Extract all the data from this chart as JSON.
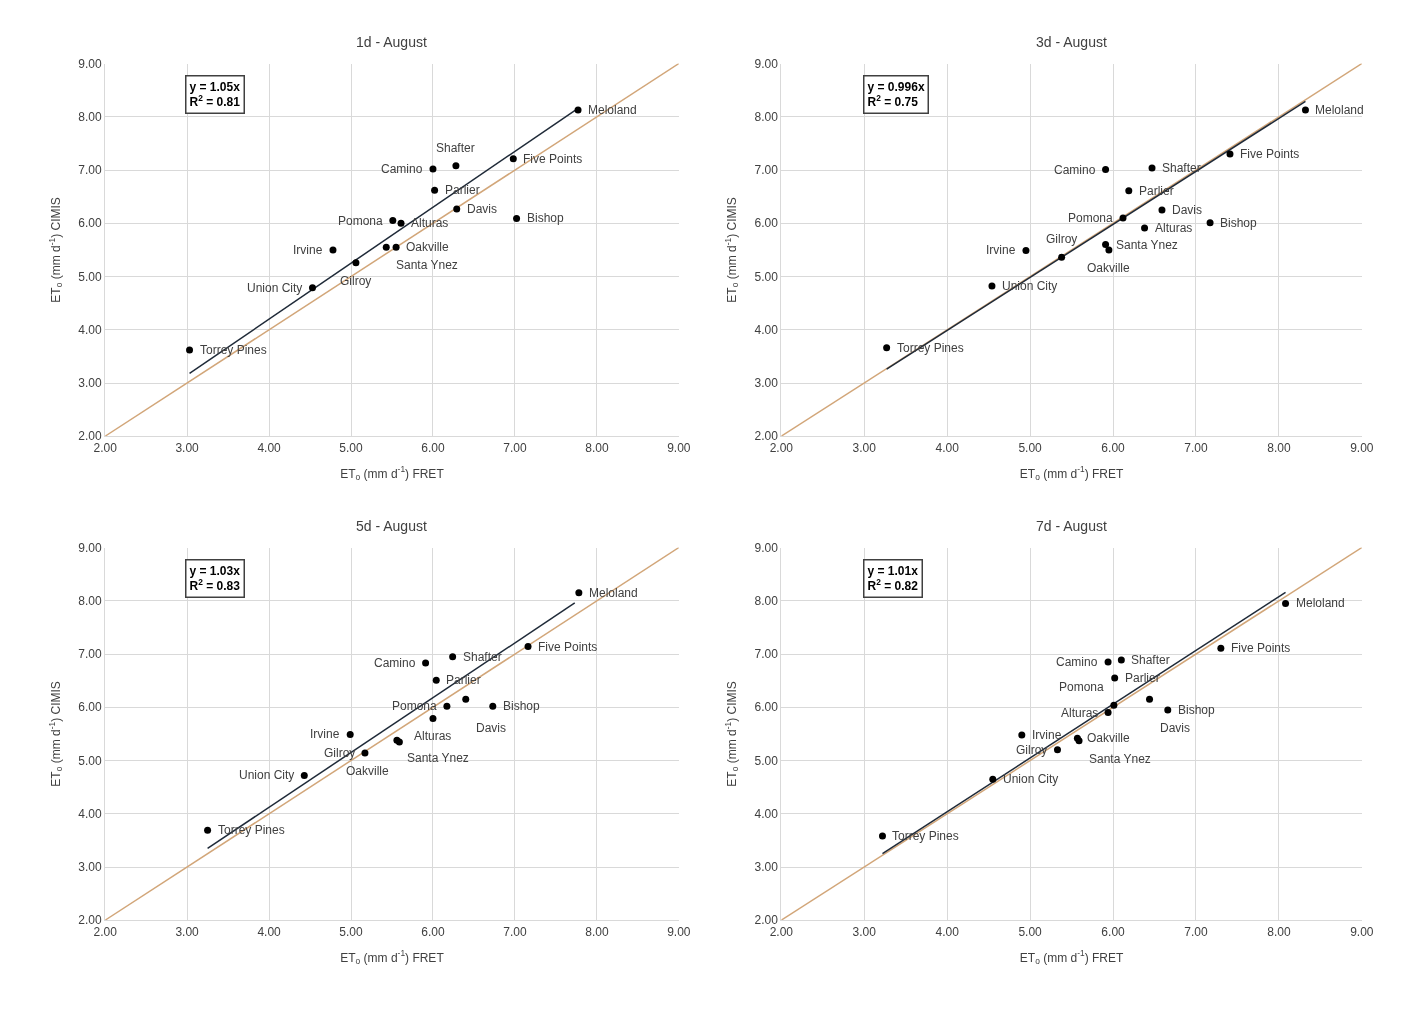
{
  "chart_data": [
    {
      "type": "scatter",
      "title": "1d - August",
      "xlabel": "ET$_{o}$ (mm d$^{-1}$) FRET",
      "ylabel": "ET$_{o}$ (mm d$^{-1}$) CIMIS",
      "xlim": [
        2,
        9
      ],
      "ylim": [
        2,
        9
      ],
      "grid": true,
      "xticks": [
        {
          "value": 2,
          "label": "2.00"
        },
        {
          "value": 3,
          "label": "3.00"
        },
        {
          "value": 4,
          "label": "4.00"
        },
        {
          "value": 5,
          "label": "5.00"
        },
        {
          "value": 6,
          "label": "6.00"
        },
        {
          "value": 7,
          "label": "7.00"
        },
        {
          "value": 8,
          "label": "8.00"
        },
        {
          "value": 9,
          "label": "9.00"
        }
      ],
      "yticks": [
        {
          "value": 2,
          "label": "2.00"
        },
        {
          "value": 3,
          "label": "3.00"
        },
        {
          "value": 4,
          "label": "4.00"
        },
        {
          "value": 5,
          "label": "5.00"
        },
        {
          "value": 6,
          "label": "6.00"
        },
        {
          "value": 7,
          "label": "7.00"
        },
        {
          "value": 8,
          "label": "8.00"
        },
        {
          "value": 9,
          "label": "9.00"
        }
      ],
      "series": [
        {
          "type": "line",
          "color": "#d2a679",
          "x": [
            2,
            9
          ],
          "values": [
            2,
            9
          ]
        },
        {
          "type": "line",
          "color": "#1f2a38",
          "x": [
            3.03,
            7.77
          ],
          "values": [
            3.18,
            8.16
          ]
        },
        {
          "color": "#000000",
          "marker": "circle",
          "x": [
            7.77,
            6.98,
            6.28,
            6.0,
            6.02,
            6.29,
            7.02,
            5.51,
            5.61,
            4.78,
            5.43,
            5.55,
            5.06,
            4.53,
            3.03
          ],
          "values": [
            8.13,
            7.21,
            7.08,
            7.02,
            6.62,
            6.27,
            6.09,
            6.05,
            6.0,
            5.5,
            5.55,
            5.55,
            5.26,
            4.79,
            3.62
          ]
        }
      ],
      "annotations": [
        "y = 1.05x\nR$^{2}$ = 0.81",
        {
          "text": "Meloland",
          "x": 7.77,
          "y": 8.13
        },
        {
          "text": "Five Points",
          "x": 6.98,
          "y": 7.21
        },
        {
          "text": "Shafter",
          "x": 6.28,
          "y": 7.08
        },
        {
          "text": "Camino",
          "x": 6.0,
          "y": 7.02
        },
        {
          "text": "Parlier",
          "x": 6.02,
          "y": 6.62
        },
        {
          "text": "Davis",
          "x": 6.29,
          "y": 6.27
        },
        {
          "text": "Bishop",
          "x": 7.02,
          "y": 6.09
        },
        {
          "text": "Pomona",
          "x": 5.51,
          "y": 6.05
        },
        {
          "text": "Alturas",
          "x": 5.61,
          "y": 6.0
        },
        {
          "text": "Irvine",
          "x": 4.78,
          "y": 5.5
        },
        {
          "text": "Santa Ynez",
          "x": 5.43,
          "y": 5.55
        },
        {
          "text": "Oakville",
          "x": 5.55,
          "y": 5.55
        },
        {
          "text": "Gilroy",
          "x": 5.06,
          "y": 5.26
        },
        {
          "text": "Union City",
          "x": 4.53,
          "y": 4.79
        },
        {
          "text": "Torrey Pines",
          "x": 3.03,
          "y": 3.62
        }
      ]
    },
    {
      "type": "scatter",
      "title": "3d - August",
      "xlabel": "ET$_{o}$ (mm d$^{-1}$) FRET",
      "ylabel": "ET$_{o}$ (mm d$^{-1}$) CIMIS",
      "xlim": [
        2,
        9
      ],
      "ylim": [
        2,
        9
      ],
      "grid": true,
      "xticks": [
        {
          "value": 2,
          "label": "2.00"
        },
        {
          "value": 3,
          "label": "3.00"
        },
        {
          "value": 4,
          "label": "4.00"
        },
        {
          "value": 5,
          "label": "5.00"
        },
        {
          "value": 6,
          "label": "6.00"
        },
        {
          "value": 7,
          "label": "7.00"
        },
        {
          "value": 8,
          "label": "8.00"
        },
        {
          "value": 9,
          "label": "9.00"
        }
      ],
      "yticks": [
        {
          "value": 2,
          "label": "2.00"
        },
        {
          "value": 3,
          "label": "3.00"
        },
        {
          "value": 4,
          "label": "4.00"
        },
        {
          "value": 5,
          "label": "5.00"
        },
        {
          "value": 6,
          "label": "6.00"
        },
        {
          "value": 7,
          "label": "7.00"
        },
        {
          "value": 8,
          "label": "8.00"
        },
        {
          "value": 9,
          "label": "9.00"
        }
      ],
      "series": [
        {
          "type": "line",
          "color": "#d2a679",
          "x": [
            2,
            9
          ],
          "values": [
            2,
            9
          ]
        },
        {
          "type": "line",
          "color": "#1f2a38",
          "x": [
            3.27,
            8.32
          ],
          "values": [
            3.26,
            8.29
          ]
        },
        {
          "color": "#000000",
          "marker": "circle",
          "x": [
            8.32,
            7.41,
            6.47,
            5.91,
            6.19,
            6.59,
            6.12,
            6.38,
            7.17,
            5.91,
            5.95,
            4.95,
            5.38,
            4.54,
            3.27
          ],
          "values": [
            8.13,
            7.3,
            7.04,
            7.01,
            6.61,
            6.25,
            6.1,
            5.91,
            6.01,
            5.6,
            5.5,
            5.49,
            5.36,
            4.82,
            3.66
          ]
        }
      ],
      "annotations": [
        "y = 0.996x\nR$^{2}$ = 0.75",
        {
          "text": "Meloland",
          "x": 8.32,
          "y": 8.13
        },
        {
          "text": "Five Points",
          "x": 7.41,
          "y": 7.3
        },
        {
          "text": "Shafter",
          "x": 6.47,
          "y": 7.04
        },
        {
          "text": "Camino",
          "x": 5.91,
          "y": 7.01
        },
        {
          "text": "Parlier",
          "x": 6.19,
          "y": 6.61
        },
        {
          "text": "Davis",
          "x": 6.59,
          "y": 6.25
        },
        {
          "text": "Pomona",
          "x": 6.12,
          "y": 6.1
        },
        {
          "text": "Alturas",
          "x": 6.38,
          "y": 5.91
        },
        {
          "text": "Bishop",
          "x": 7.17,
          "y": 6.01
        },
        {
          "text": "Santa Ynez",
          "x": 5.91,
          "y": 5.6
        },
        {
          "text": "Oakville",
          "x": 5.95,
          "y": 5.5
        },
        {
          "text": "Irvine",
          "x": 4.95,
          "y": 5.49
        },
        {
          "text": "Gilroy",
          "x": 5.38,
          "y": 5.36
        },
        {
          "text": "Union City",
          "x": 4.54,
          "y": 4.82
        },
        {
          "text": "Torrey Pines",
          "x": 3.27,
          "y": 3.66
        }
      ]
    },
    {
      "type": "scatter",
      "title": "5d - August",
      "xlabel": "ET$_{o}$ (mm d$^{-1}$) FRET",
      "ylabel": "ET$_{o}$ (mm d$^{-1}$) CIMIS",
      "xlim": [
        2,
        9
      ],
      "ylim": [
        2,
        9
      ],
      "grid": true,
      "xticks": [
        {
          "value": 2,
          "label": "2.00"
        },
        {
          "value": 3,
          "label": "3.00"
        },
        {
          "value": 4,
          "label": "4.00"
        },
        {
          "value": 5,
          "label": "5.00"
        },
        {
          "value": 6,
          "label": "6.00"
        },
        {
          "value": 7,
          "label": "7.00"
        },
        {
          "value": 8,
          "label": "8.00"
        },
        {
          "value": 9,
          "label": "9.00"
        }
      ],
      "yticks": [
        {
          "value": 2,
          "label": "2.00"
        },
        {
          "value": 3,
          "label": "3.00"
        },
        {
          "value": 4,
          "label": "4.00"
        },
        {
          "value": 5,
          "label": "5.00"
        },
        {
          "value": 6,
          "label": "6.00"
        },
        {
          "value": 7,
          "label": "7.00"
        },
        {
          "value": 8,
          "label": "8.00"
        },
        {
          "value": 9,
          "label": "9.00"
        }
      ],
      "series": [
        {
          "type": "line",
          "color": "#d2a679",
          "x": [
            2,
            9
          ],
          "values": [
            2,
            9
          ]
        },
        {
          "type": "line",
          "color": "#1f2a38",
          "x": [
            3.25,
            7.73
          ],
          "values": [
            3.35,
            7.96
          ]
        },
        {
          "color": "#000000",
          "marker": "circle",
          "x": [
            7.78,
            7.16,
            6.24,
            5.91,
            6.04,
            6.4,
            6.17,
            6.73,
            6.0,
            4.99,
            5.56,
            5.59,
            5.17,
            4.43,
            3.25
          ],
          "values": [
            8.15,
            7.14,
            6.95,
            6.83,
            6.51,
            6.15,
            6.02,
            6.02,
            5.79,
            5.49,
            5.38,
            5.35,
            5.14,
            4.72,
            3.69
          ]
        }
      ],
      "annotations": [
        "y = 1.03x\nR$^{2}$ = 0.83",
        {
          "text": "Meloland",
          "x": 7.78,
          "y": 8.15
        },
        {
          "text": "Five Points",
          "x": 7.16,
          "y": 7.14
        },
        {
          "text": "Shafter",
          "x": 6.24,
          "y": 6.95
        },
        {
          "text": "Camino",
          "x": 5.91,
          "y": 6.83
        },
        {
          "text": "Parlier",
          "x": 6.04,
          "y": 6.51
        },
        {
          "text": "Davis",
          "x": 6.4,
          "y": 6.15
        },
        {
          "text": "Pomona",
          "x": 6.17,
          "y": 6.02
        },
        {
          "text": "Bishop",
          "x": 6.73,
          "y": 6.02
        },
        {
          "text": "Alturas",
          "x": 6.0,
          "y": 5.79
        },
        {
          "text": "Irvine",
          "x": 4.99,
          "y": 5.49
        },
        {
          "text": "Santa Ynez",
          "x": 5.56,
          "y": 5.38
        },
        {
          "text": "Oakville",
          "x": 5.59,
          "y": 5.35
        },
        {
          "text": "Gilroy",
          "x": 5.17,
          "y": 5.14
        },
        {
          "text": "Union City",
          "x": 4.43,
          "y": 4.72
        },
        {
          "text": "Torrey Pines",
          "x": 3.25,
          "y": 3.69
        }
      ]
    },
    {
      "type": "scatter",
      "title": "7d - August",
      "xlabel": "ET$_{o}$ (mm d$^{-1}$) FRET",
      "ylabel": "ET$_{o}$ (mm d$^{-1}$) CIMIS",
      "xlim": [
        2,
        9
      ],
      "ylim": [
        2,
        9
      ],
      "grid": true,
      "xticks": [
        {
          "value": 2,
          "label": "2.00"
        },
        {
          "value": 3,
          "label": "3.00"
        },
        {
          "value": 4,
          "label": "4.00"
        },
        {
          "value": 5,
          "label": "5.00"
        },
        {
          "value": 6,
          "label": "6.00"
        },
        {
          "value": 7,
          "label": "7.00"
        },
        {
          "value": 8,
          "label": "8.00"
        },
        {
          "value": 9,
          "label": "9.00"
        }
      ],
      "yticks": [
        {
          "value": 2,
          "label": "2.00"
        },
        {
          "value": 3,
          "label": "3.00"
        },
        {
          "value": 4,
          "label": "4.00"
        },
        {
          "value": 5,
          "label": "5.00"
        },
        {
          "value": 6,
          "label": "6.00"
        },
        {
          "value": 7,
          "label": "7.00"
        },
        {
          "value": 8,
          "label": "8.00"
        },
        {
          "value": 9,
          "label": "9.00"
        }
      ],
      "series": [
        {
          "type": "line",
          "color": "#d2a679",
          "x": [
            2,
            9
          ],
          "values": [
            2,
            9
          ]
        },
        {
          "type": "line",
          "color": "#1f2a38",
          "x": [
            3.22,
            8.08
          ],
          "values": [
            3.25,
            8.16
          ]
        },
        {
          "color": "#000000",
          "marker": "circle",
          "x": [
            8.08,
            7.3,
            6.1,
            5.94,
            6.02,
            6.44,
            6.01,
            6.66,
            5.94,
            4.9,
            5.57,
            5.59,
            5.33,
            4.55,
            3.22
          ],
          "values": [
            7.95,
            7.11,
            6.89,
            6.85,
            6.55,
            6.15,
            6.04,
            5.95,
            5.9,
            5.48,
            5.42,
            5.37,
            5.2,
            4.65,
            3.58
          ]
        }
      ],
      "annotations": [
        "y = 1.01x\nR$^{2}$ = 0.82",
        {
          "text": "Meloland",
          "x": 8.08,
          "y": 7.95
        },
        {
          "text": "Five Points",
          "x": 7.3,
          "y": 7.11
        },
        {
          "text": "Shafter",
          "x": 6.1,
          "y": 6.89
        },
        {
          "text": "Camino",
          "x": 5.94,
          "y": 6.85
        },
        {
          "text": "Parlier",
          "x": 6.02,
          "y": 6.55
        },
        {
          "text": "Davis",
          "x": 6.44,
          "y": 6.15
        },
        {
          "text": "Pomona",
          "x": 6.01,
          "y": 6.04
        },
        {
          "text": "Bishop",
          "x": 6.66,
          "y": 5.95
        },
        {
          "text": "Alturas",
          "x": 5.94,
          "y": 5.9
        },
        {
          "text": "Irvine",
          "x": 4.9,
          "y": 5.48
        },
        {
          "text": "Oakville",
          "x": 5.57,
          "y": 5.42
        },
        {
          "text": "Santa Ynez",
          "x": 5.59,
          "y": 5.37
        },
        {
          "text": "Gilroy",
          "x": 5.33,
          "y": 5.2
        },
        {
          "text": "Union City",
          "x": 4.55,
          "y": 4.65
        },
        {
          "text": "Torrey Pines",
          "x": 3.22,
          "y": 3.58
        }
      ]
    }
  ]
}
